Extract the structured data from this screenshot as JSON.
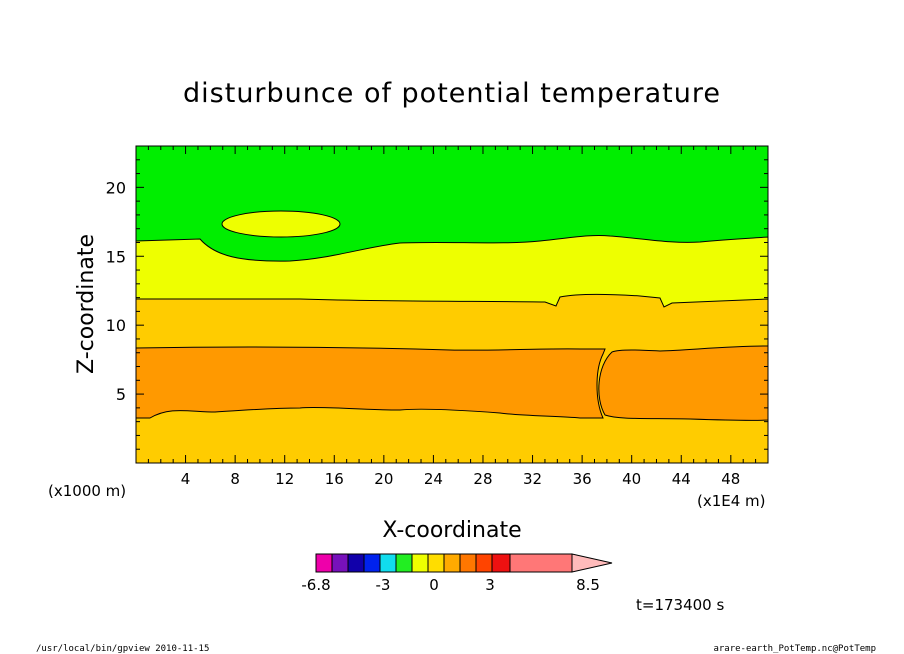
{
  "chart_data": {
    "type": "contour",
    "title": "disturbunce of potential temperature",
    "xlabel": "X-coordinate",
    "ylabel": "Z-coordinate",
    "xlim": [
      0,
      51
    ],
    "ylim": [
      0,
      23
    ],
    "x_ticks": [
      "4",
      "8",
      "12",
      "16",
      "20",
      "24",
      "28",
      "32",
      "36",
      "40",
      "44",
      "48"
    ],
    "y_ticks": [
      "5",
      "10",
      "15",
      "20"
    ],
    "x_tick_values": [
      4,
      8,
      12,
      16,
      20,
      24,
      28,
      32,
      36,
      40,
      44,
      48
    ],
    "y_tick_values": [
      5,
      10,
      15,
      20
    ],
    "y_unit": "(x1000 m)",
    "x_unit": "(x1E4 m)",
    "grid": false,
    "bands": [
      {
        "color": "#ffcc00",
        "z_bottom": 0,
        "z_top": 3.4
      },
      {
        "color": "#ff9900",
        "z_bottom": 3.4,
        "z_top": 8.4
      },
      {
        "color": "#ffcc00",
        "z_bottom": 8.4,
        "z_top": 11.7
      },
      {
        "color": "#eeff00",
        "z_bottom": 11.7,
        "z_top": 16.1
      },
      {
        "color": "#00ee00",
        "z_bottom": 16.1,
        "z_top": 23
      }
    ],
    "colorbar": {
      "colors": [
        "#ee00aa",
        "#7711bb",
        "#1100aa",
        "#0022ee",
        "#11ddee",
        "#22ee22",
        "#eeff00",
        "#ffdd00",
        "#ffaa00",
        "#ff7700",
        "#ff4400",
        "#ee1111",
        "#ff7777",
        "#ffbbbb"
      ],
      "labels": [
        "-6.8",
        "-3",
        "0",
        "3",
        "8.5"
      ]
    },
    "time_label": "t=173400 s"
  },
  "footer": {
    "left": "/usr/local/bin/gpview   2010-11-15",
    "right": "arare-earth_PotTemp.nc@PotTemp"
  }
}
